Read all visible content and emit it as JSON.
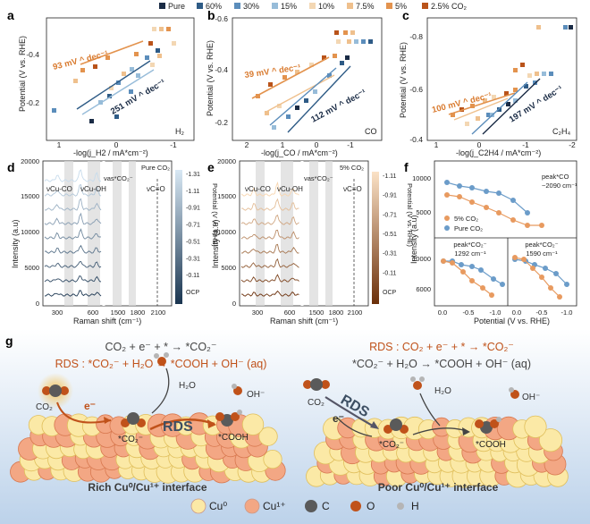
{
  "legend": {
    "items": [
      {
        "label": "Pure",
        "color": "#1a2b45"
      },
      {
        "label": "60%",
        "color": "#2e5b86"
      },
      {
        "label": "30%",
        "color": "#5b8dbb"
      },
      {
        "label": "15%",
        "color": "#97bcd9"
      },
      {
        "label": "10%",
        "color": "#f3d7b3"
      },
      {
        "label": "7.5%",
        "color": "#efc08d"
      },
      {
        "label": "5%",
        "color": "#e3934e"
      },
      {
        "label": "2.5% CO₂",
        "color": "#b9531a"
      }
    ]
  },
  "panels": {
    "a": {
      "letter": "a",
      "ylabel": "Potential (V vs. RHE)",
      "xlabel": "-log(j_H2 / mA*cm⁻²)",
      "xticks": [
        "1",
        "0",
        "-1"
      ],
      "yticks": [
        "-0.4",
        "-0.2"
      ],
      "product": "H₂",
      "slope_orange": "93 mV ^ dec⁻¹",
      "slope_blue": "251 mV ^ dec⁻¹"
    },
    "b": {
      "letter": "b",
      "ylabel": "Potential (V vs. RHE)",
      "xlabel": "-log(j_CO / mA*cm⁻²)",
      "xticks": [
        "2",
        "1",
        "0",
        "-1"
      ],
      "yticks": [
        "-0.6",
        "-0.4",
        "-0.2"
      ],
      "product": "CO",
      "slope_orange": "39 mV ^ dec⁻¹",
      "slope_blue": "112 mV ^ dec⁻¹"
    },
    "c": {
      "letter": "c",
      "ylabel": "Potential (V vs. RHE)",
      "xlabel": "-log(j_C2H4 / mA*cm⁻²)",
      "xticks": [
        "1",
        "0",
        "-1",
        "-2"
      ],
      "yticks": [
        "-0.8",
        "-0.6",
        "-0.4"
      ],
      "product": "C₂H₄",
      "slope_orange": "100 mV ^ dec⁻¹",
      "slope_blue": "197 mV ^ dec⁻¹"
    },
    "d": {
      "letter": "d",
      "ylabel": "Intensity (a.u)",
      "xlabel": "Raman shift (cm⁻¹)",
      "xticks": [
        "300",
        "600",
        "1500",
        "1800",
        "2100"
      ],
      "yticks": [
        "0",
        "5000",
        "10000",
        "15000",
        "20000"
      ],
      "gas": "Pure CO₂",
      "peaks": [
        "νCu-CO",
        "νCu-OH",
        "νas*CO₂⁻",
        "νC≡O"
      ],
      "cbar_label": "Potential (V vs. RHE)",
      "cbar_ticks": [
        "-1.31",
        "-1.11",
        "-0.91",
        "-0.71",
        "-0.51",
        "-0.31",
        "-0.11",
        "OCP"
      ]
    },
    "e": {
      "letter": "e",
      "ylabel": "Intensity (a.u)",
      "xlabel": "Raman shift (cm⁻¹)",
      "xticks": [
        "300",
        "600",
        "1500",
        "1800",
        "2100"
      ],
      "yticks": [
        "0",
        "5000",
        "10000",
        "15000",
        "20000"
      ],
      "gas": "5% CO₂",
      "peaks": [
        "νCu-CO",
        "νCu-OH",
        "νas*CO₂⁻",
        "νC≡O"
      ],
      "cbar_label": "Potential (V vs. RHE)",
      "cbar_ticks": [
        "-1.11",
        "-0.91",
        "-0.71",
        "-0.51",
        "-0.31",
        "-0.11",
        "OCP"
      ]
    },
    "f": {
      "letter": "f",
      "ylabel": "Intensity (a.u)",
      "xlabel": "Potential (V vs. RHE)",
      "xticks": [
        "0.0",
        "-0.5",
        "-1.0"
      ],
      "xticks2": [
        "0.0",
        "-0.5",
        "-1.0"
      ],
      "yticks_top": [
        "10000",
        "5000"
      ],
      "yticks_bottom": [
        "10000",
        "6000"
      ],
      "peak_co": "peak*CO",
      "peak_co_val": "~2090 cm⁻¹",
      "peak_co2a": "peak*CO₂⁻",
      "peak_co2a_val": "1292 cm⁻¹",
      "peak_co2b": "peak*CO₂⁻",
      "peak_co2b_val": "1590 cm⁻¹",
      "legend_5": "5% CO₂",
      "legend_pure": "Pure CO₂"
    }
  },
  "panel_g": {
    "letter": "g",
    "left_eq1": "CO₂ + e⁻ + * → *CO₂⁻",
    "left_eq2": "RDS : *CO₂⁻ + H₂O → *COOH + OH⁻ (aq)",
    "right_eq1": "RDS : CO₂ + e⁻ + * → *CO₂⁻",
    "right_eq2": "*CO₂⁻ + H₂O → *COOH + OH⁻ (aq)",
    "left_labels": {
      "co2": "CO₂",
      "e": "e⁻",
      "co2ads": "*CO₂⁻",
      "rds": "RDS",
      "cooh": "*COOH",
      "h2o": "H₂O",
      "oh": "OH⁻"
    },
    "right_labels": {
      "co2": "CO₂",
      "e": "e⁻",
      "co2ads": "*CO₂⁻",
      "rds": "RDS",
      "cooh": "*COOH",
      "h2o": "H₂O",
      "oh": "OH⁻"
    },
    "left_caption": "Rich Cu⁰/Cu¹⁺ interface",
    "right_caption": "Poor Cu⁰/Cu¹⁺ interface",
    "legend": [
      {
        "label": "Cu⁰",
        "color": "#fbe9a6"
      },
      {
        "label": "Cu¹⁺",
        "color": "#f3a784"
      },
      {
        "label": "C",
        "color": "#5a5a5a"
      },
      {
        "label": "O",
        "color": "#c0521a"
      },
      {
        "label": "H",
        "color": "#b5b5b5"
      }
    ]
  }
}
